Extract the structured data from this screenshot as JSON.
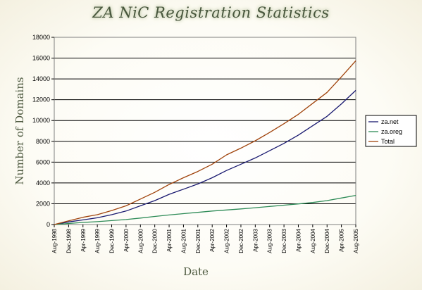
{
  "title": "ZA NiC Registration Statistics",
  "colors": {
    "za_net": "#191970",
    "za_oreg": "#2e8b57",
    "total": "#a0430c"
  },
  "chart_data": {
    "type": "line",
    "xlabel": "Date",
    "ylabel": "Number of Domains",
    "ylim": [
      0,
      18000
    ],
    "yticks": [
      0,
      2000,
      4000,
      6000,
      8000,
      10000,
      12000,
      14000,
      16000,
      18000
    ],
    "grid": "horizontal",
    "legend_position": "right",
    "x": [
      "Aug-1998",
      "Dec-1998",
      "Apr-1999",
      "Aug-1999",
      "Dec-1999",
      "Apr-2000",
      "Aug-2000",
      "Dec-2000",
      "Apr-2001",
      "Aug-2001",
      "Dec-2001",
      "Apr-2002",
      "Aug-2002",
      "Dec-2002",
      "Apr-2003",
      "Aug-2003",
      "Dec-2003",
      "Apr-2004",
      "Aug-2004",
      "Dec-2004",
      "Apr-2005",
      "Aug-2005"
    ],
    "series": [
      {
        "name": "za.net",
        "color": "#191970",
        "values": [
          0,
          250,
          450,
          650,
          950,
          1300,
          1800,
          2300,
          2900,
          3400,
          3900,
          4500,
          5200,
          5800,
          6400,
          7100,
          7800,
          8600,
          9500,
          10400,
          11600,
          12900
        ]
      },
      {
        "name": "za.oreg",
        "color": "#2e8b57",
        "values": [
          0,
          100,
          200,
          280,
          380,
          480,
          620,
          780,
          920,
          1050,
          1170,
          1300,
          1400,
          1500,
          1620,
          1740,
          1860,
          1980,
          2120,
          2300,
          2550,
          2800
        ]
      },
      {
        "name": "Total",
        "color": "#a0430c",
        "values": [
          0,
          350,
          700,
          950,
          1350,
          1800,
          2450,
          3100,
          3850,
          4500,
          5100,
          5800,
          6700,
          7350,
          8050,
          8850,
          9700,
          10600,
          11650,
          12700,
          14200,
          15750
        ]
      }
    ]
  }
}
